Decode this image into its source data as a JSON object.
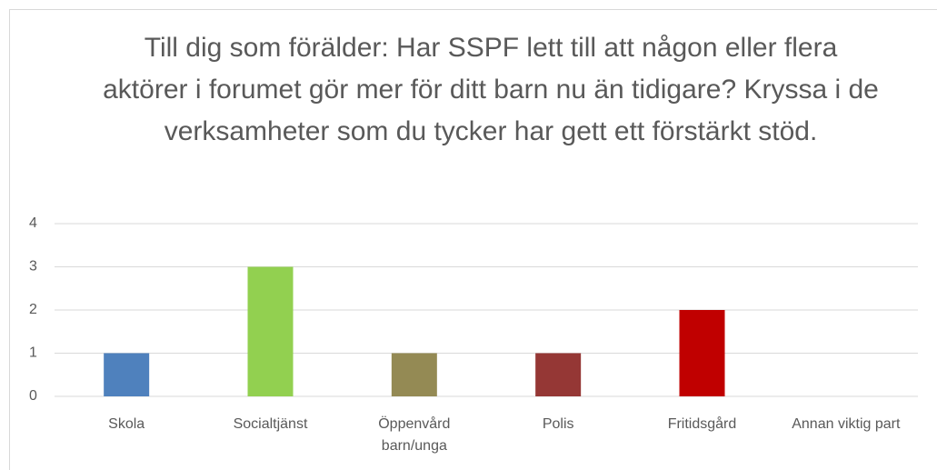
{
  "chart_data": {
    "type": "bar",
    "title": "Till dig som förälder: Har SSPF lett till att någon eller flera aktörer i forumet gör mer för ditt barn nu än tidigare? Kryssa i de verksamheter som du tycker har gett ett förstärkt stöd.",
    "categories": [
      "Skola",
      "Socialtjänst",
      "Öppenvård barn/unga",
      "Polis",
      "Fritidsgård",
      "Annan viktig part"
    ],
    "values": [
      1,
      3,
      1,
      1,
      2,
      0
    ],
    "colors": [
      "#4f81bd",
      "#92d050",
      "#948a54",
      "#953735",
      "#c00000",
      "#4f81bd"
    ],
    "ylim": [
      0,
      4
    ],
    "yticks": [
      0,
      1,
      2,
      3,
      4
    ],
    "grid": true
  }
}
